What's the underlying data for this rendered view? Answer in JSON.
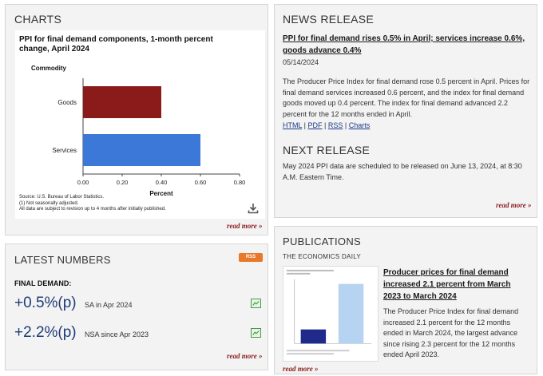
{
  "charts": {
    "panel_title": "CHARTS",
    "read_more": "read more »",
    "source_lines": [
      "Source: U.S. Bureau of Labor Statistics.",
      "(1) Not seasonally adjusted.",
      "All data are subject to revision up to 4 months after initially published."
    ]
  },
  "chart_data": {
    "type": "bar",
    "orientation": "horizontal",
    "title": "PPI for final demand components, 1-month percent change, April 2024",
    "categories_title": "Commodity",
    "categories": [
      "Goods",
      "Services"
    ],
    "values": [
      0.4,
      0.6
    ],
    "colors": [
      "#8b1a1a",
      "#3b78d8"
    ],
    "xlabel": "Percent",
    "xlim": [
      0.0,
      0.8
    ],
    "xticks": [
      "0.00",
      "0.20",
      "0.40",
      "0.60",
      "0.80"
    ],
    "grid": false
  },
  "latest": {
    "panel_title": "LATEST NUMBERS",
    "rss": "RSS",
    "final_demand_label": "FINAL DEMAND:",
    "stats": [
      {
        "value": "+0.5%(p)",
        "desc": "SA in Apr 2024"
      },
      {
        "value": "+2.2%(p)",
        "desc": "NSA since Apr 2023"
      }
    ],
    "read_more": "read more »"
  },
  "news": {
    "panel_title": "NEWS RELEASE",
    "headline": "PPI for final demand rises 0.5% in April; services increase 0.6%, goods advance 0.4%",
    "date": "05/14/2024",
    "body": "The Producer Price Index for final demand rose 0.5 percent in April. Prices for final demand services increased 0.6 percent, and the index for final demand goods moved up 0.4 percent. The index for final demand advanced 2.2 percent for the 12 months ended in April.",
    "links": [
      "HTML",
      "PDF",
      "RSS",
      "Charts"
    ],
    "next_title": "NEXT RELEASE",
    "next_body": "May 2024 PPI data are scheduled to be released on June 13, 2024, at 8:30 A.M. Eastern Time.",
    "read_more": "read more »"
  },
  "publications": {
    "panel_title": "PUBLICATIONS",
    "ted_label": "THE ECONOMICS DAILY",
    "headline": "Producer prices for final demand increased 2.1 percent from March 2023 to March 2024",
    "body": "The Producer Price Index for final demand increased 2.1 percent for the 12 months ended in March 2024, the largest advance since rising 2.3 percent for the 12 months ended April 2023.",
    "read_more": "read more »"
  }
}
